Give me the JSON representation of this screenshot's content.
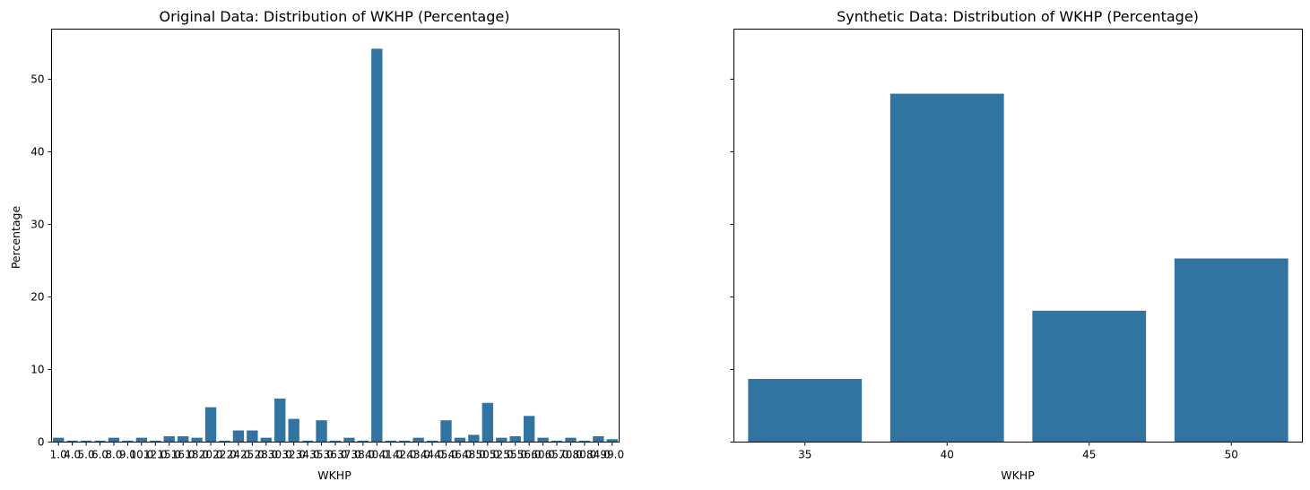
{
  "chart_data": [
    {
      "type": "bar",
      "title": "Original Data: Distribution of WKHP (Percentage)",
      "xlabel": "WKHP",
      "ylabel": "Percentage",
      "ylim": [
        0,
        56.9
      ],
      "yticks": [
        "0",
        "10",
        "20",
        "30",
        "40",
        "50"
      ],
      "color": "#3274a1",
      "categories": [
        "1.0",
        "4.0",
        "5.0",
        "6.0",
        "8.0",
        "9.0",
        "10.0",
        "12.0",
        "15.0",
        "16.0",
        "18.0",
        "20.0",
        "22.0",
        "24.0",
        "25.0",
        "28.0",
        "30.0",
        "32.0",
        "34.0",
        "35.0",
        "36.0",
        "37.0",
        "38.0",
        "40.0",
        "41.0",
        "42.0",
        "43.0",
        "44.0",
        "45.0",
        "46.0",
        "48.0",
        "50.0",
        "52.0",
        "55.0",
        "56.0",
        "60.0",
        "65.0",
        "70.0",
        "80.0",
        "84.0",
        "99.0"
      ],
      "values": [
        0.6,
        0.2,
        0.2,
        0.2,
        0.6,
        0.2,
        0.6,
        0.2,
        0.8,
        0.8,
        0.6,
        4.8,
        0.2,
        1.6,
        1.6,
        0.6,
        6.0,
        3.2,
        0.2,
        3.0,
        0.2,
        0.6,
        0.2,
        54.2,
        0.2,
        0.2,
        0.6,
        0.2,
        3.0,
        0.6,
        1.0,
        5.4,
        0.6,
        0.8,
        3.6,
        0.6,
        0.2,
        0.6,
        0.2,
        0.8,
        0.4
      ]
    },
    {
      "type": "bar",
      "title": "Synthetic Data: Distribution of WKHP (Percentage)",
      "xlabel": "WKHP",
      "ylabel": "",
      "ylim": [
        0,
        56.9
      ],
      "color": "#3274a1",
      "categories": [
        "35",
        "40",
        "45",
        "50"
      ],
      "values": [
        8.7,
        48.0,
        18.1,
        25.3
      ]
    }
  ]
}
